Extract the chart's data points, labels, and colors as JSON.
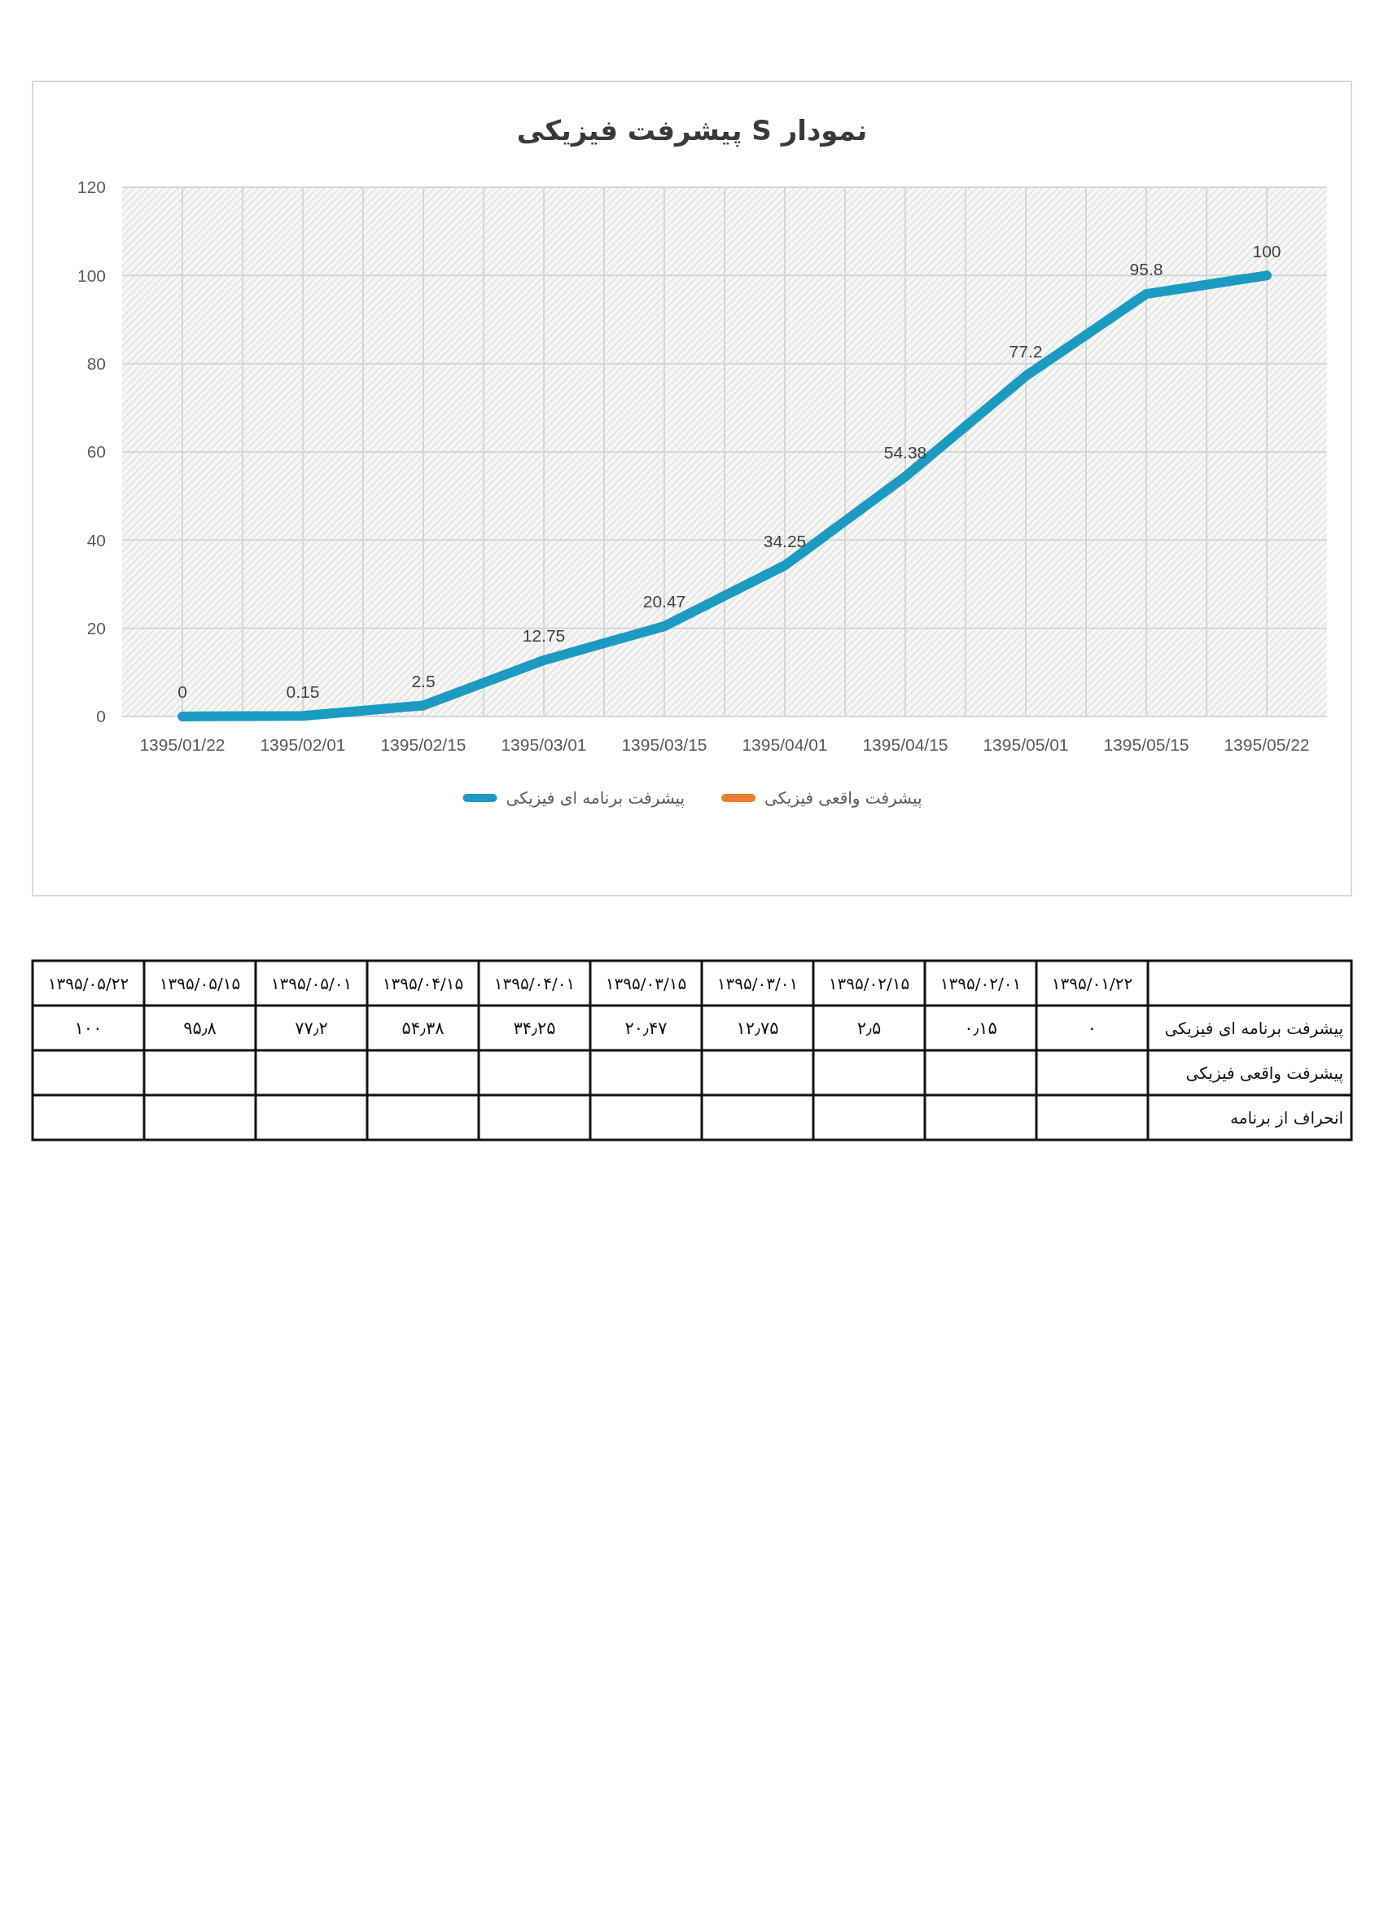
{
  "chart_data": [
    {
      "type": "line",
      "title": "نمودار S پیشرفت فیزیکی",
      "categories": [
        "1395/01/22",
        "1395/02/01",
        "1395/02/15",
        "1395/03/01",
        "1395/03/15",
        "1395/04/01",
        "1395/04/15",
        "1395/05/01",
        "1395/05/15",
        "1395/05/22"
      ],
      "series": [
        {
          "name": "پیشرفت برنامه ای فیزیکی",
          "color": "#1b9ac2",
          "values": [
            0,
            0.15,
            2.5,
            12.75,
            20.47,
            34.25,
            54.38,
            77.2,
            95.8,
            100
          ]
        },
        {
          "name": "پیشرفت واقعی فیزیکی",
          "color": "#ed7d31",
          "values": [
            null,
            null,
            null,
            null,
            null,
            null,
            null,
            null,
            null,
            null
          ]
        }
      ],
      "ylim": [
        0,
        120
      ],
      "yticks": [
        0,
        20,
        40,
        60,
        80,
        100,
        120
      ],
      "grid": true,
      "legend": "bottom",
      "data_labels": true
    },
    {
      "type": "other",
      "categories": [
        "۱۳۹۵/۰۵/۲۲",
        "۱۳۹۵/۰۵/۱۵",
        "۱۳۹۵/۰۵/۰۱",
        "۱۳۹۵/۰۴/۱۵",
        "۱۳۹۵/۰۴/۰۱",
        "۱۳۹۵/۰۳/۱۵",
        "۱۳۹۵/۰۳/۰۱",
        "۱۳۹۵/۰۲/۱۵",
        "۱۳۹۵/۰۲/۰۱",
        "۱۳۹۵/۰۱/۲۲"
      ],
      "y2_categories": [
        "پیشرفت برنامه ای فیزیکی",
        "پیشرفت واقعی فیزیکی",
        "انحراف از برنامه"
      ],
      "cell_labels": [
        [
          "۱۰۰",
          "۹۵٫۸",
          "۷۷٫۲",
          "۵۴٫۳۸",
          "۳۴٫۲۵",
          "۲۰٫۴۷",
          "۱۲٫۷۵",
          "۲٫۵",
          "۰٫۱۵",
          "۰"
        ],
        [
          null,
          null,
          null,
          null,
          null,
          null,
          null,
          null,
          null,
          null
        ],
        [
          null,
          null,
          null,
          null,
          null,
          null,
          null,
          null,
          null,
          null
        ]
      ]
    }
  ]
}
